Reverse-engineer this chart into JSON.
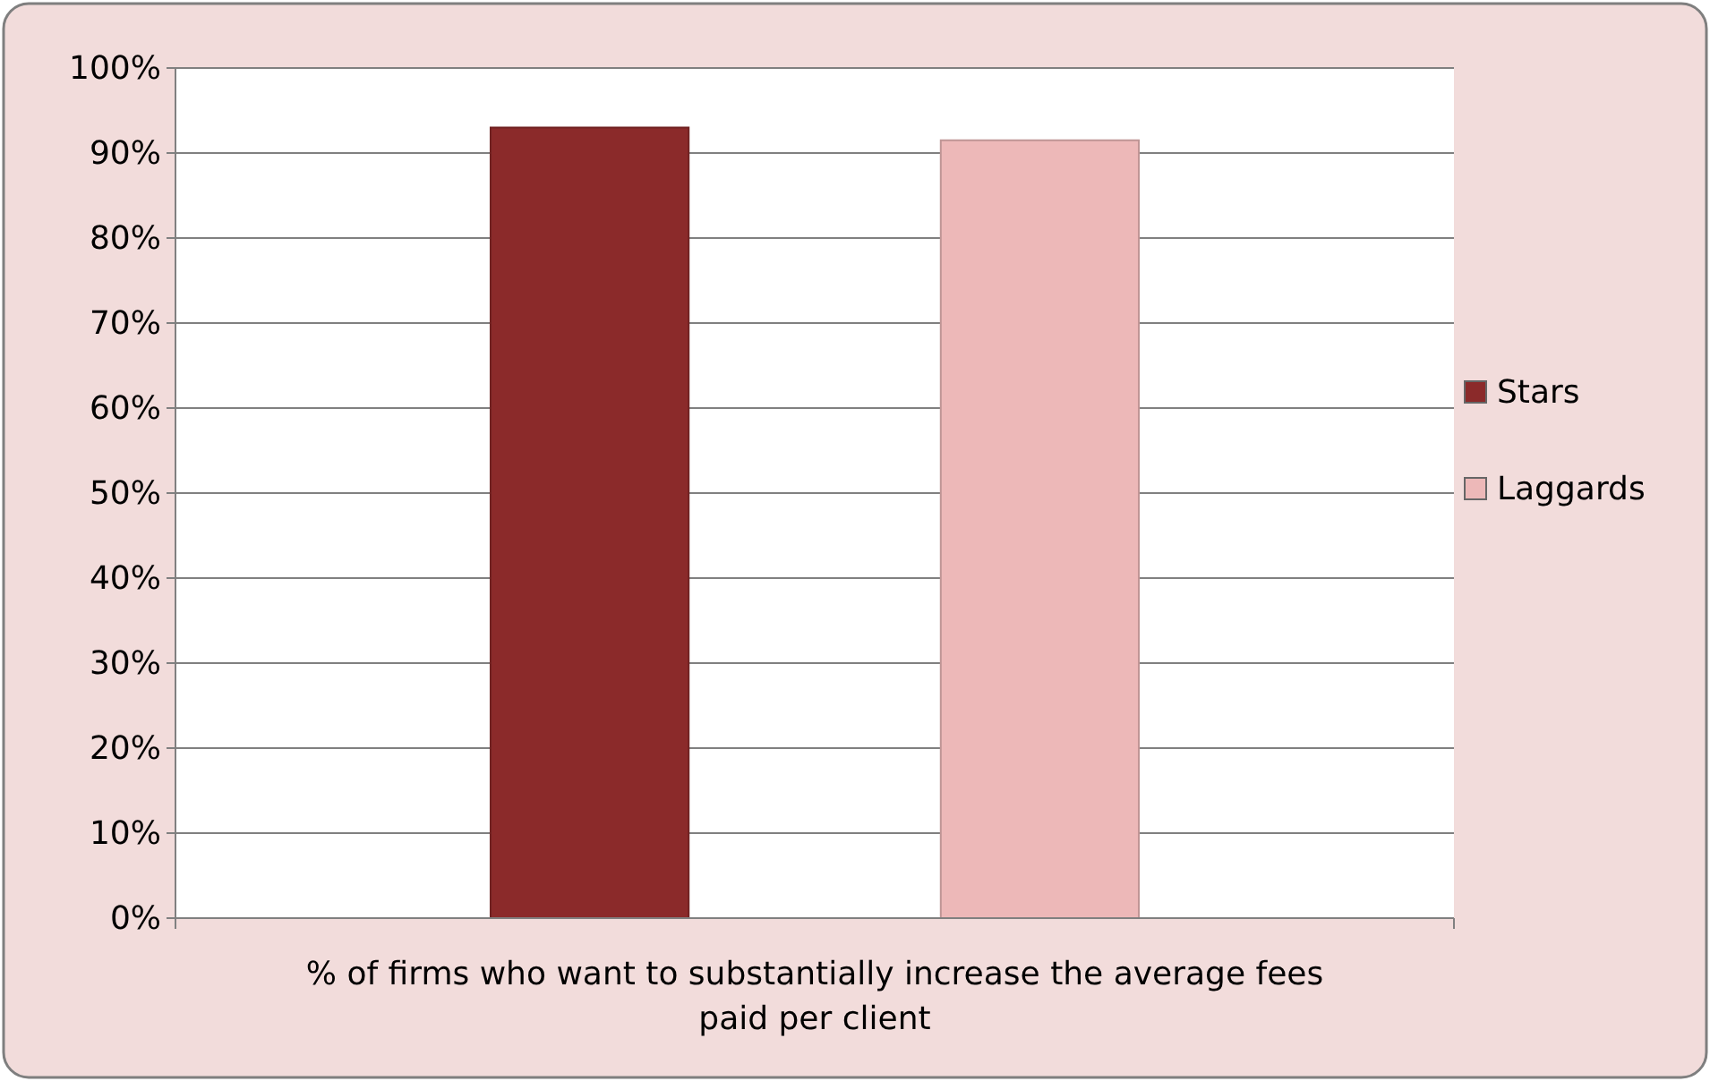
{
  "chart_data": {
    "type": "bar",
    "categories": [
      "% of firms who want to substantially increase the average fees paid per client"
    ],
    "series": [
      {
        "name": "Stars",
        "color": "#8b2a2a",
        "values": [
          93
        ]
      },
      {
        "name": "Laggards",
        "color": "#edb8b8",
        "values": [
          91.5
        ]
      }
    ],
    "ylim": [
      0,
      100
    ],
    "yticks": [
      {
        "value": 0,
        "label": "0%"
      },
      {
        "value": 10,
        "label": "10%"
      },
      {
        "value": 20,
        "label": "20%"
      },
      {
        "value": 30,
        "label": "30%"
      },
      {
        "value": 40,
        "label": "40%"
      },
      {
        "value": 50,
        "label": "50%"
      },
      {
        "value": 60,
        "label": "60%"
      },
      {
        "value": 70,
        "label": "70%"
      },
      {
        "value": 80,
        "label": "80%"
      },
      {
        "value": 90,
        "label": "90%"
      },
      {
        "value": 100,
        "label": "100%"
      }
    ],
    "grid": "y",
    "legend": "right"
  }
}
